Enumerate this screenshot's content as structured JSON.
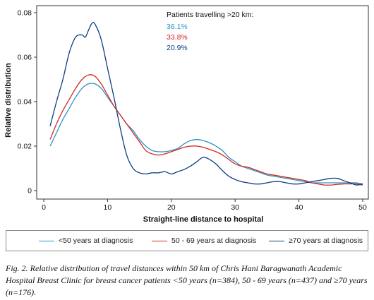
{
  "chart_data": {
    "type": "line",
    "title": "",
    "xlabel": "Straight-line distance to hospital",
    "ylabel": "Relative distribution",
    "xlim": [
      0,
      50
    ],
    "ylim": [
      0,
      0.08
    ],
    "x_ticks": [
      "0",
      "10",
      "20",
      "30",
      "40",
      "50"
    ],
    "y_ticks": [
      "0",
      "0.02",
      "0.04",
      "0.06",
      "0.08"
    ],
    "grid": false,
    "legend_position": "bottom",
    "annotation": {
      "heading": "Patients travelling  >20 km:",
      "values": [
        {
          "text": "36.1%",
          "color": "#2b93c6"
        },
        {
          "text": "33.8%",
          "color": "#d7261e"
        },
        {
          "text": "20.9%",
          "color": "#0d3e86"
        }
      ]
    },
    "series": [
      {
        "name": "<50 years at diagnosis",
        "color": "#2b93c6",
        "points": [
          [
            1,
            0.02
          ],
          [
            2,
            0.026
          ],
          [
            3,
            0.032
          ],
          [
            4,
            0.037
          ],
          [
            5,
            0.042
          ],
          [
            6,
            0.046
          ],
          [
            7,
            0.048
          ],
          [
            8,
            0.048
          ],
          [
            9,
            0.046
          ],
          [
            10,
            0.042
          ],
          [
            11,
            0.038
          ],
          [
            12,
            0.034
          ],
          [
            13,
            0.03
          ],
          [
            14,
            0.027
          ],
          [
            15,
            0.023
          ],
          [
            16,
            0.02
          ],
          [
            17,
            0.018
          ],
          [
            18,
            0.0175
          ],
          [
            19,
            0.0175
          ],
          [
            20,
            0.018
          ],
          [
            21,
            0.019
          ],
          [
            22,
            0.021
          ],
          [
            23,
            0.0225
          ],
          [
            24,
            0.023
          ],
          [
            25,
            0.0225
          ],
          [
            26,
            0.0215
          ],
          [
            27,
            0.02
          ],
          [
            28,
            0.018
          ],
          [
            29,
            0.015
          ],
          [
            30,
            0.013
          ],
          [
            31,
            0.011
          ],
          [
            32,
            0.01
          ],
          [
            33,
            0.009
          ],
          [
            34,
            0.008
          ],
          [
            35,
            0.007
          ],
          [
            36,
            0.0065
          ],
          [
            37,
            0.006
          ],
          [
            38,
            0.0055
          ],
          [
            39,
            0.005
          ],
          [
            40,
            0.0045
          ],
          [
            41,
            0.004
          ],
          [
            42,
            0.0035
          ],
          [
            43,
            0.0035
          ],
          [
            44,
            0.0035
          ],
          [
            45,
            0.0035
          ],
          [
            46,
            0.0035
          ],
          [
            47,
            0.0035
          ],
          [
            48,
            0.0035
          ],
          [
            49,
            0.0035
          ],
          [
            50,
            0.003
          ]
        ]
      },
      {
        "name": "50 - 69 years at diagnosis",
        "color": "#d7261e",
        "points": [
          [
            1,
            0.023
          ],
          [
            2,
            0.03
          ],
          [
            3,
            0.036
          ],
          [
            4,
            0.041
          ],
          [
            5,
            0.046
          ],
          [
            6,
            0.05
          ],
          [
            7,
            0.052
          ],
          [
            8,
            0.0515
          ],
          [
            9,
            0.048
          ],
          [
            10,
            0.043
          ],
          [
            11,
            0.038
          ],
          [
            12,
            0.034
          ],
          [
            13,
            0.03
          ],
          [
            14,
            0.026
          ],
          [
            15,
            0.022
          ],
          [
            16,
            0.018
          ],
          [
            17,
            0.0165
          ],
          [
            18,
            0.016
          ],
          [
            19,
            0.0165
          ],
          [
            20,
            0.0175
          ],
          [
            21,
            0.0185
          ],
          [
            22,
            0.0195
          ],
          [
            23,
            0.02
          ],
          [
            24,
            0.02
          ],
          [
            25,
            0.0195
          ],
          [
            26,
            0.0185
          ],
          [
            27,
            0.0175
          ],
          [
            28,
            0.016
          ],
          [
            29,
            0.014
          ],
          [
            30,
            0.012
          ],
          [
            31,
            0.011
          ],
          [
            32,
            0.0105
          ],
          [
            33,
            0.0095
          ],
          [
            34,
            0.0085
          ],
          [
            35,
            0.0075
          ],
          [
            36,
            0.007
          ],
          [
            37,
            0.0065
          ],
          [
            38,
            0.006
          ],
          [
            39,
            0.0055
          ],
          [
            40,
            0.005
          ],
          [
            41,
            0.0045
          ],
          [
            42,
            0.0035
          ],
          [
            43,
            0.003
          ],
          [
            44,
            0.0025
          ],
          [
            45,
            0.0025
          ],
          [
            46,
            0.0028
          ],
          [
            47,
            0.003
          ],
          [
            48,
            0.003
          ],
          [
            49,
            0.003
          ],
          [
            50,
            0.0025
          ]
        ]
      },
      {
        "name": "≥70 years at diagnosis",
        "color": "#0d3e86",
        "points": [
          [
            1,
            0.029
          ],
          [
            2,
            0.04
          ],
          [
            3,
            0.05
          ],
          [
            4,
            0.062
          ],
          [
            5,
            0.069
          ],
          [
            6,
            0.07
          ],
          [
            6.5,
            0.069
          ],
          [
            7,
            0.072
          ],
          [
            7.5,
            0.075
          ],
          [
            8,
            0.075
          ],
          [
            9,
            0.068
          ],
          [
            10,
            0.055
          ],
          [
            11,
            0.042
          ],
          [
            12,
            0.028
          ],
          [
            13,
            0.016
          ],
          [
            14,
            0.01
          ],
          [
            15,
            0.008
          ],
          [
            16,
            0.0075
          ],
          [
            17,
            0.008
          ],
          [
            18,
            0.008
          ],
          [
            19,
            0.0085
          ],
          [
            20,
            0.0075
          ],
          [
            21,
            0.0085
          ],
          [
            22,
            0.0095
          ],
          [
            23,
            0.011
          ],
          [
            24,
            0.013
          ],
          [
            25,
            0.015
          ],
          [
            26,
            0.014
          ],
          [
            27,
            0.012
          ],
          [
            28,
            0.009
          ],
          [
            29,
            0.0065
          ],
          [
            30,
            0.005
          ],
          [
            31,
            0.004
          ],
          [
            32,
            0.0035
          ],
          [
            33,
            0.003
          ],
          [
            34,
            0.003
          ],
          [
            35,
            0.0035
          ],
          [
            36,
            0.004
          ],
          [
            37,
            0.004
          ],
          [
            38,
            0.0035
          ],
          [
            39,
            0.003
          ],
          [
            40,
            0.003
          ],
          [
            41,
            0.0035
          ],
          [
            42,
            0.004
          ],
          [
            43,
            0.0045
          ],
          [
            44,
            0.005
          ],
          [
            45,
            0.0055
          ],
          [
            46,
            0.0055
          ],
          [
            47,
            0.0045
          ],
          [
            48,
            0.0035
          ],
          [
            49,
            0.0025
          ],
          [
            50,
            0.003
          ]
        ]
      }
    ]
  },
  "caption": "Fig. 2. Relative distribution of travel distances within 50 km of Chris Hani Baragwanath Academic Hospital Breast Clinic for breast cancer patients <50 years (n=384), 50 - 69 years (n=437) and ≥70 years (n=176)."
}
